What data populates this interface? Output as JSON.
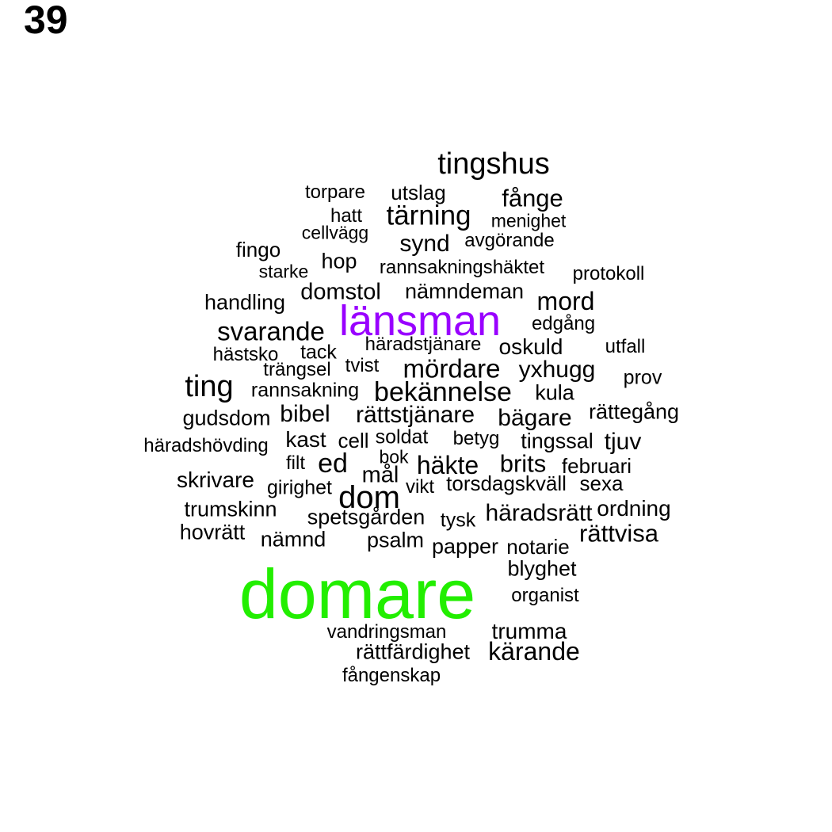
{
  "page_number": "39",
  "colors": {
    "default": "#000000",
    "highlight_1": "#22ee00",
    "highlight_2": "#9900ff"
  },
  "words": [
    "tingshus",
    "torpare",
    "utslag",
    "fånge",
    "hatt",
    "tärning",
    "menighet",
    "cellvägg",
    "synd",
    "avgörande",
    "fingo",
    "hop",
    "rannsakningshäktet",
    "starke",
    "protokoll",
    "handling",
    "domstol",
    "nämndeman",
    "mord",
    "länsman",
    "svarande",
    "edgång",
    "hästsko",
    "tack",
    "häradstjänare",
    "oskuld",
    "utfall",
    "trängsel",
    "tvist",
    "mördare",
    "yxhugg",
    "prov",
    "ting",
    "rannsakning",
    "bekännelse",
    "kula",
    "gudsdom",
    "bibel",
    "rättstjänare",
    "bägare",
    "rättegång",
    "häradshövding",
    "kast",
    "cell",
    "soldat",
    "betyg",
    "tingssal",
    "tjuv",
    "bok",
    "filt",
    "ed",
    "häkte",
    "brits",
    "februari",
    "mål",
    "skrivare",
    "girighet",
    "vikt",
    "torsdagskväll",
    "sexa",
    "dom",
    "trumskinn",
    "spetsgården",
    "tysk",
    "häradsrätt",
    "ordning",
    "hovrätt",
    "nämnd",
    "psalm",
    "papper",
    "notarie",
    "rättvisa",
    "blyghet",
    "domare",
    "organist",
    "vandringsman",
    "trumma",
    "rättfärdighet",
    "kärande",
    "fångenskap"
  ]
}
